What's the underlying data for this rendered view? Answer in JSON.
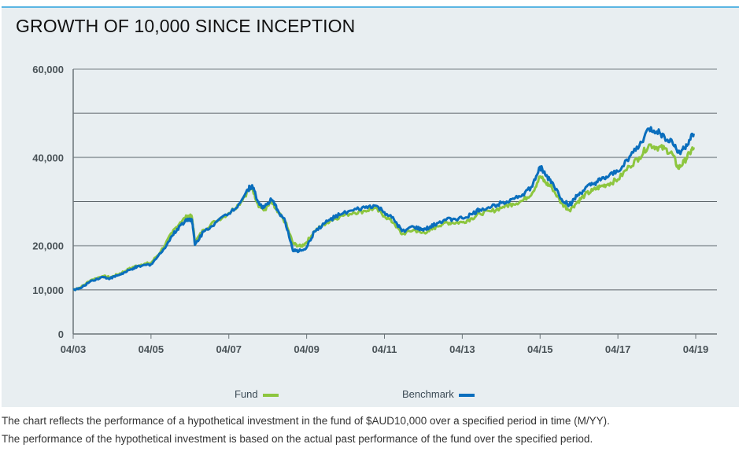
{
  "title": "GROWTH OF 10,000 SINCE INCEPTION",
  "legend": {
    "fund_label": "Fund",
    "benchmark_label": "Benchmark"
  },
  "footnotes": [
    "The chart reflects the performance of a hypothetical investment in the fund of $AUD10,000 over a specified period in time (M/YY).",
    "The performance of the hypothetical investment is based on the actual past performance of the fund over the specified period."
  ],
  "colors": {
    "fund": "#8dc63f",
    "benchmark": "#0a6ebd",
    "panel_border": "#5bb6e3"
  },
  "chart_data": {
    "type": "line",
    "title": "GROWTH OF 10,000 SINCE INCEPTION",
    "xlabel": "",
    "ylabel": "",
    "x_unit": "year (decimal)",
    "xlim": [
      2003.25,
      2019.8
    ],
    "ylim": [
      0,
      60000
    ],
    "y_gridlines": [
      0,
      10000,
      20000,
      30000,
      40000,
      50000,
      60000
    ],
    "y_tick_labels": [
      {
        "value": 0,
        "label": "0"
      },
      {
        "value": 10000,
        "label": "10,000"
      },
      {
        "value": 20000,
        "label": "20,000"
      },
      {
        "value": 40000,
        "label": "40,000"
      },
      {
        "value": 60000,
        "label": "60,000"
      }
    ],
    "x_ticks": [
      {
        "value": 2003.25,
        "label": "04/03"
      },
      {
        "value": 2005.25,
        "label": "04/05"
      },
      {
        "value": 2007.25,
        "label": "04/07"
      },
      {
        "value": 2009.25,
        "label": "04/09"
      },
      {
        "value": 2011.25,
        "label": "04/11"
      },
      {
        "value": 2013.25,
        "label": "04/13"
      },
      {
        "value": 2015.25,
        "label": "04/15"
      },
      {
        "value": 2017.25,
        "label": "04/17"
      },
      {
        "value": 2019.25,
        "label": "04/19"
      }
    ],
    "grid": true,
    "legend_position": "bottom-center",
    "x": [
      2003.25,
      2003.45,
      2003.7,
      2004.0,
      2004.2,
      2004.4,
      2004.6,
      2004.8,
      2005.0,
      2005.25,
      2005.5,
      2005.8,
      2006.0,
      2006.2,
      2006.3,
      2006.38,
      2006.6,
      2006.9,
      2007.25,
      2007.5,
      2007.75,
      2007.85,
      2008.0,
      2008.15,
      2008.35,
      2008.5,
      2008.7,
      2008.9,
      2009.1,
      2009.25,
      2009.45,
      2009.7,
      2009.85,
      2010.1,
      2010.45,
      2010.75,
      2011.0,
      2011.25,
      2011.5,
      2011.7,
      2012.0,
      2012.2,
      2012.4,
      2012.6,
      2012.8,
      2013.0,
      2013.25,
      2013.5,
      2013.7,
      2014.0,
      2014.3,
      2014.55,
      2014.8,
      2015.05,
      2015.25,
      2015.4,
      2015.55,
      2015.8,
      2016.0,
      2016.2,
      2016.4,
      2016.6,
      2016.8,
      2017.0,
      2017.25,
      2017.55,
      2017.8,
      2018.05,
      2018.25,
      2018.45,
      2018.65,
      2018.8,
      2018.95,
      2019.1,
      2019.2
    ],
    "series": [
      {
        "name": "Fund",
        "color": "#8dc63f",
        "values": [
          10000,
          10600,
          12200,
          13100,
          12800,
          13500,
          14300,
          15200,
          15700,
          16100,
          18700,
          23000,
          25300,
          26800,
          26500,
          20800,
          23600,
          25500,
          27400,
          29300,
          32500,
          33200,
          29400,
          28000,
          29800,
          27600,
          25400,
          20500,
          19800,
          20800,
          23300,
          24800,
          25700,
          26600,
          27500,
          27900,
          28500,
          26800,
          25100,
          22600,
          23600,
          22900,
          23300,
          24400,
          25200,
          25200,
          25300,
          26200,
          27300,
          27800,
          28800,
          29500,
          30200,
          32000,
          35700,
          34200,
          33300,
          29600,
          28100,
          29800,
          31500,
          32500,
          33400,
          34000,
          35000,
          38000,
          40000,
          42900,
          42300,
          42000,
          40800,
          37500,
          39000,
          41000,
          42300
        ]
      },
      {
        "name": "Benchmark",
        "color": "#0a6ebd",
        "values": [
          10000,
          10400,
          12000,
          12900,
          12600,
          13300,
          14000,
          14900,
          15400,
          15800,
          18300,
          22300,
          24600,
          26100,
          25900,
          20200,
          23200,
          25200,
          27300,
          29400,
          32800,
          33700,
          29900,
          28600,
          30400,
          28200,
          25500,
          18800,
          18900,
          19600,
          23200,
          25000,
          25900,
          27000,
          28000,
          28600,
          29100,
          27600,
          25800,
          23300,
          24300,
          23600,
          24000,
          25100,
          25900,
          26000,
          26200,
          27100,
          28200,
          28800,
          29900,
          30700,
          31600,
          33400,
          37900,
          35800,
          34500,
          30600,
          29200,
          31200,
          32800,
          33900,
          34800,
          35600,
          36800,
          40200,
          42600,
          46500,
          45900,
          44600,
          43500,
          41100,
          42000,
          44000,
          45400
        ]
      }
    ]
  }
}
